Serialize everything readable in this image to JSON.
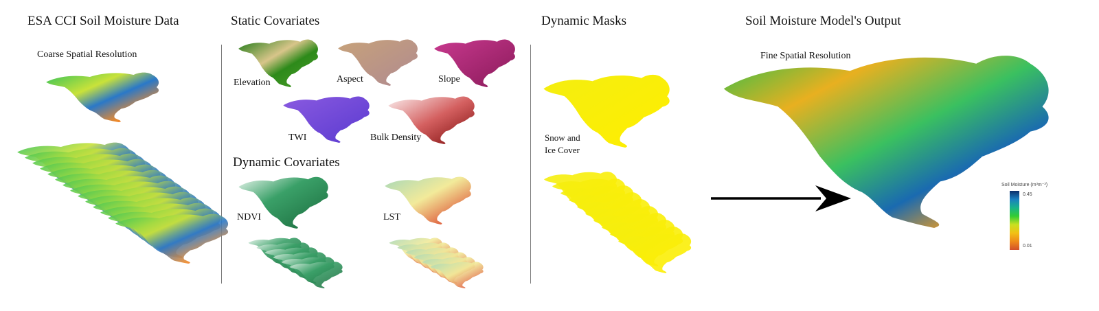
{
  "sections": {
    "esa": {
      "title": "ESA CCI Soil Moisture Data",
      "subtitle": "Coarse Spatial Resolution"
    },
    "static": {
      "title": "Static Covariates",
      "items": [
        "Elevation",
        "Aspect",
        "Slope",
        "TWI",
        "Bulk Density"
      ]
    },
    "dynamic_cov": {
      "title": "Dynamic Covariates",
      "items": [
        "NDVI",
        "LST"
      ]
    },
    "masks": {
      "title": "Dynamic Masks",
      "label_line1": "Snow and",
      "label_line2": "Ice Cover"
    },
    "output": {
      "title": "Soil Moisture Model's Output",
      "subtitle": "Fine Spatial Resolution",
      "colorbar": {
        "title": "Soil Moisture (m³m⁻³)",
        "max_label": "0.45",
        "min_label": "0.01",
        "colors": [
          "#0b2f6b",
          "#1a7fc0",
          "#19b38a",
          "#33cc33",
          "#c8e021",
          "#f2c014",
          "#ee8a1a",
          "#d2502a"
        ]
      }
    }
  }
}
